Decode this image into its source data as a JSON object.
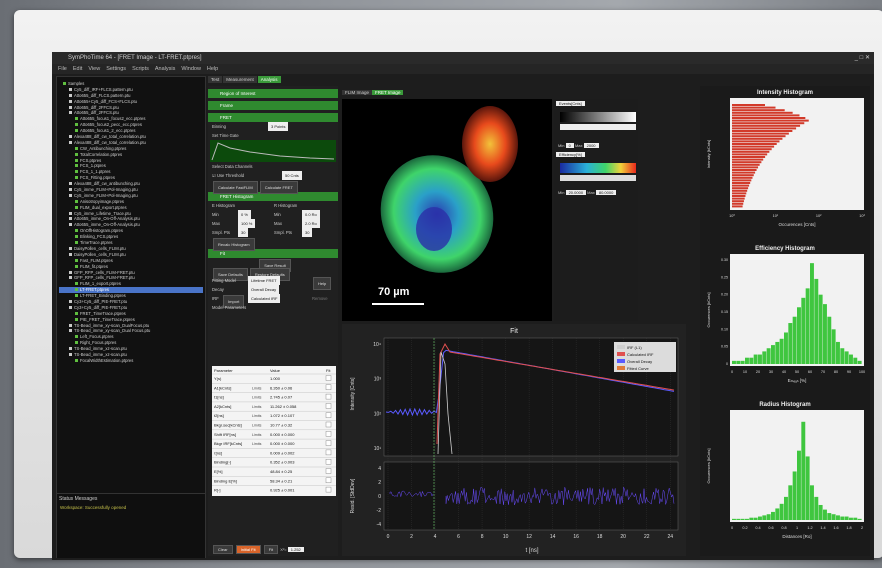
{
  "app_title": "SymPhoTime 64 - [FRET Image - LT-FRET.ptpres]",
  "menu": [
    "File",
    "Edit",
    "View",
    "Settings",
    "Scripts",
    "Analysis",
    "Window",
    "Help"
  ],
  "tree": [
    "Samples",
    "Cy5_diff_IRF+FLCS.pattern.ptu",
    "Atto655_diff_FLCS.pattern.ptu",
    "Atto655+Cy5_diff_FCS+FLCS.ptu",
    "Atto655_diff_2FFCS.ptu",
    "Atto655_diff_2FFCS.ptu",
    "Atto655_focus1_focus2_ecc.ptpres",
    "Atto655_focus2_pecc_ecc.ptpres",
    "Atto655_focus1_2_ecc.ptpres",
    "Alexa488_diff_cw_total_correlation.ptu",
    "Alexa488_diff_cw_total_correlation.ptu",
    "CW_Antibunching.ptpres",
    "TotalCorrelation.ptpres",
    "FCS.ptpres",
    "FCS_1.ptpres",
    "FCS_1_1.ptpres",
    "FCS_Fitting.ptpres",
    "Alexa488_diff_cw_antibunching.ptu",
    "Cy5_imme_FLIM+Pol-Imaging.ptu",
    "Cy5_imme_FLIM+Pol-Imaging.ptu",
    "Anisotropyimage.ptpres",
    "FLIM_dual_export.ptpres",
    "Cy5_imme_Lifetime_Trace.ptu",
    "Atto655_imme_On-Off-Analysis.ptu",
    "Atto655_imme_On-Off-Analysis.ptu",
    "OnOffHistogram.ptpres",
    "Blinking_FCS.ptpres",
    "TimeTrace.ptpres",
    "DaisyPollen_cells_FLIM.ptu",
    "DaisyPollen_cells_FLIM.ptu",
    "Fast_FLIM.ptpres",
    "FLIM_fit.ptpres",
    "GFP_RFP_cells_FLIM-FRET.ptu",
    "GFP_RFP_cells_FLIM-FRET.ptu",
    "FLIM_1_export.ptpres",
    "LT-FRET.ptpres",
    "LT-FRET_Binding.ptpres",
    "Cy3+Cy5_diff_PIE-FRET.ptu",
    "Cy3+Cy5_diff_PIE-FRET.ptu",
    "FRET_TimeTrace.ptpres",
    "PIE_FRET_TimeTrace.ptpres",
    "TS-Bead_imme_xy-scan_DualFocus.ptu",
    "TS-Bead_imme_xy-scan_Dual Focus.ptu",
    "Left_Focus.ptpres",
    "Right_Focus.ptpres",
    "TS-Bead_imme_xz-scan.ptu",
    "TS-Bead_imme_xz-scan.ptu",
    "FocalWidthEstimation.ptpres"
  ],
  "status": {
    "heading": "Status Messages",
    "message": "Workspace: Successfully opened"
  },
  "tabs": [
    "Test",
    "Measurement",
    "Analysis"
  ],
  "sections": [
    "Region of Interest",
    "Frame",
    "FRET"
  ],
  "binning_label": "Binning",
  "binning_value": "3 Points",
  "set_time_gate": "Set Time Gate",
  "select_data_channels": "Select Data Channels",
  "use_threshold": "Use Threshold",
  "threshold_value": "50 Cnts",
  "btn_fastflim": "Calculate FastFLIM",
  "btn_fret": "Calculate FRET",
  "fret_histogram": "FRET Histogram",
  "e_hist": "E Histogram",
  "r_hist": "R Histogram",
  "min_label": "Min",
  "max_label": "Max",
  "bin_label": "Smpl. Pts",
  "e_min": "0 %",
  "e_max": "100 %",
  "e_bins": "30",
  "r_min": "0.0 Ro",
  "r_max": "2.0 Ro",
  "r_bins": "30",
  "recalc": "Recalc Histogram",
  "fit_section": "Fit",
  "save_result": "Save Result",
  "save_defaults": "Save Defaults",
  "restore_defaults": "Restore Defaults",
  "fitting_model": "Fitting Model",
  "fitting_model_value": "Lifetime FRET",
  "help": "Help",
  "decay_label": "Decay",
  "decay_value": "Overall Decay",
  "irf_label": "IRF",
  "irf_import": "Import",
  "irf_value": "Calculated IRF",
  "remove": "Remove",
  "model_params": "Model Parameters",
  "param_headers": [
    "Parameter",
    "Value",
    "Fit"
  ],
  "params": [
    [
      "Y(s)",
      "",
      "1.000"
    ],
    [
      "A1[kCnts]",
      "Limits",
      "6.260 ± 0.06"
    ],
    [
      "t1[ns]",
      "Limits",
      "2.745 ± 0.07"
    ],
    [
      "A2[kCnts]",
      "Limits",
      "11.262 ± 0.058"
    ],
    [
      "t2[ns]",
      "Limits",
      "1.072 ± 0.107"
    ],
    [
      "Bkgr.sec[kCnts]",
      "Limits",
      "10.77 ± 0.32"
    ],
    [
      "Shift IRF[ns]",
      "Limits",
      "0.000 ± 0.000"
    ],
    [
      "Bkgr IRF[kCnts]",
      "Limits",
      "0.000 ± 0.000"
    ],
    [
      "τ[ns]",
      "",
      "0.009 ± 0.002"
    ],
    [
      "Binding[-]",
      "",
      "0.352 ± 0.003"
    ],
    [
      "E[%]",
      "",
      "48.84 ± 0.25"
    ],
    [
      "Binding E[%]",
      "",
      "58.34 ± 0.21"
    ],
    [
      "R[-]",
      "",
      "0.925 ± 0.001"
    ]
  ],
  "bottom_buttons": [
    "Clear",
    "Initial Fit",
    "Fit",
    "X²=",
    "1.252"
  ],
  "image_tabs": [
    "FLIM Image",
    "FRET Image"
  ],
  "scalebar": "70 µm",
  "events_label": "Events[Cnts]",
  "min_label2": "Min",
  "max_label2": "Max",
  "ev_min": "0",
  "ev_max": "2000",
  "eff_label": "Efficiency[%]",
  "eff_min": "20.0000",
  "eff_max": "80.0000",
  "fit_chart": {
    "title": "Fit",
    "ylabel": "Intensity [Cnts]",
    "resid_label": "Resid. [StdDev]",
    "xlabel": "t [ns]",
    "legend": [
      "IRF (L1)",
      "Calculated IRF",
      "Overall Decay",
      "Fitted Curve"
    ],
    "xticks": [
      "0",
      "2",
      "4",
      "6",
      "8",
      "10",
      "12",
      "14",
      "16",
      "18",
      "20",
      "22",
      "24"
    ],
    "yticks": [
      "10¹",
      "10²",
      "10³",
      "10⁴"
    ],
    "rticks": [
      "4",
      "2",
      "0",
      "-2",
      "-4"
    ]
  },
  "intensity_hist": {
    "title": "Intensity Histogram",
    "ylabel": "Intensity [kCnts]",
    "xlabel": "Occurences [Cnts]",
    "xticks": [
      "10⁰",
      "10¹",
      "10²",
      "10³"
    ]
  },
  "efficiency_hist": {
    "title": "Efficiency Histogram",
    "ylabel": "Occurences [kCnts]",
    "xlabel": "Eₘₑₐₙ [%]",
    "xticks": [
      "0",
      "10",
      "20",
      "30",
      "40",
      "50",
      "60",
      "70",
      "80",
      "90",
      "100"
    ],
    "yticks": [
      "0.30",
      "0.25",
      "0.20",
      "0.15",
      "0.10",
      "0.05",
      "0"
    ]
  },
  "radius_hist": {
    "title": "Radius Histogram",
    "ylabel": "Occurences [kCnts]",
    "xlabel": "Distances [Ro]",
    "xticks": [
      "0",
      "0.2",
      "0.4",
      "0.6",
      "0.8",
      "1",
      "1.2",
      "1.4",
      "1.6",
      "1.8",
      "2"
    ]
  },
  "chart_data": [
    {
      "type": "bar",
      "title": "Efficiency Histogram",
      "xlabel": "Eₘₑₐₙ [%]",
      "ylabel": "Occurences [kCnts]",
      "ylim": [
        0,
        0.33
      ],
      "x": [
        0,
        3,
        6,
        10,
        13,
        16,
        20,
        23,
        26,
        30,
        33,
        36,
        40,
        43,
        46,
        50,
        53,
        56,
        60,
        63,
        66,
        70,
        73,
        76,
        80,
        83,
        86,
        90,
        93,
        96
      ],
      "values": [
        0.01,
        0.01,
        0.01,
        0.02,
        0.02,
        0.03,
        0.03,
        0.04,
        0.05,
        0.06,
        0.07,
        0.08,
        0.1,
        0.13,
        0.15,
        0.18,
        0.21,
        0.24,
        0.32,
        0.27,
        0.22,
        0.19,
        0.15,
        0.11,
        0.07,
        0.05,
        0.04,
        0.03,
        0.02,
        0.01
      ]
    },
    {
      "type": "bar",
      "title": "Radius Histogram",
      "xlabel": "Distances [Ro]",
      "ylabel": "Occurences [kCnts]",
      "x": [
        0.0,
        0.07,
        0.13,
        0.2,
        0.27,
        0.33,
        0.4,
        0.47,
        0.53,
        0.6,
        0.67,
        0.73,
        0.8,
        0.87,
        0.93,
        1.0,
        1.07,
        1.13,
        1.2,
        1.27,
        1.33,
        1.4,
        1.47,
        1.53,
        1.6,
        1.67,
        1.73,
        1.8,
        1.87,
        1.93
      ],
      "values": [
        0.01,
        0.01,
        0.01,
        0.01,
        0.02,
        0.02,
        0.03,
        0.04,
        0.05,
        0.07,
        0.1,
        0.14,
        0.2,
        0.3,
        0.42,
        0.6,
        0.85,
        0.55,
        0.3,
        0.2,
        0.13,
        0.09,
        0.06,
        0.05,
        0.04,
        0.03,
        0.03,
        0.02,
        0.02,
        0.01
      ]
    }
  ]
}
